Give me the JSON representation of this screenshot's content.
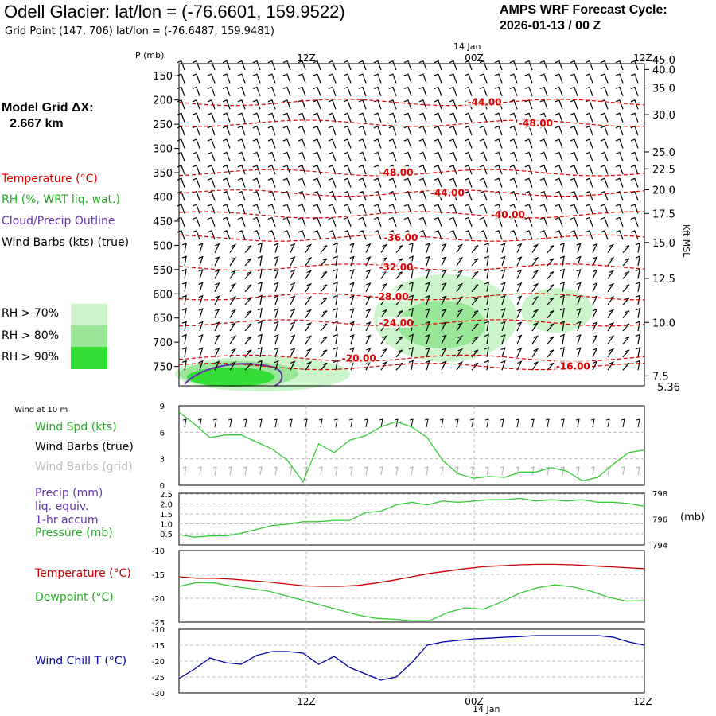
{
  "header": {
    "title": "Odell Glacier:  lat/lon = (-76.6601, 159.9522)",
    "subtitle": "Grid Point (147, 706) lat/lon = (-76.6487, 159.9481)",
    "cycle_line1": "AMPS WRF Forecast Cycle:",
    "cycle_line2": "2026-01-13 / 00  Z",
    "grid_label_line1": "Model Grid ΔX:",
    "grid_label_line2": "2.667 km"
  },
  "legend": {
    "temperature": "Temperature (°C)",
    "rh": "RH (%, WRT liq. wat.)",
    "cloud": "Cloud/Precip Outline",
    "wind": "Wind Barbs (kts) (true)",
    "rh70": "RH > 70%",
    "rh80": "RH > 80%",
    "rh90": "RH > 90%",
    "colors": {
      "rh70": "#ccf5cc",
      "rh80": "#99e699",
      "rh90": "#33dd33",
      "temp": "#dd0000",
      "cloud": "#6633aa"
    }
  },
  "time_axis": {
    "top_date": "14 Jan",
    "bottom_date": "14 Jan",
    "ticks": [
      "12Z",
      "00Z",
      "12Z"
    ]
  },
  "chart_data": [
    {
      "type": "contour",
      "id": "upper-air",
      "ylabel": "P (mb)",
      "y2label": "Kft MSL",
      "pressure_ticks": [
        "150",
        "200",
        "250",
        "300",
        "350",
        "400",
        "450",
        "500",
        "550",
        "600",
        "650",
        "700",
        "750"
      ],
      "pressure_range": [
        125,
        790
      ],
      "height_ticks": [
        "45.0",
        "40.0",
        "35.0",
        "30.0",
        "25.0",
        "22.5",
        "20.0",
        "17.5",
        "15.0",
        "12.5",
        "10.0",
        "7.5"
      ],
      "height_bottom": "5.36",
      "height_positions_mb": [
        150,
        170,
        208,
        263,
        340,
        375,
        418,
        467,
        527,
        601,
        692,
        802
      ],
      "temperature_contours": [
        {
          "label": "-44.00",
          "level": 205,
          "lt": 0.62
        },
        {
          "label": "-48.00",
          "level": 248,
          "lt": 0.73
        },
        {
          "label": "-48.00",
          "level": 350,
          "lt": 0.43
        },
        {
          "label": "-44.00",
          "level": 392,
          "lt": 0.54
        },
        {
          "label": "-40.00",
          "level": 437,
          "lt": 0.67
        },
        {
          "label": "-36.00",
          "level": 485,
          "lt": 0.44
        },
        {
          "label": "-32.00",
          "level": 545,
          "lt": 0.43
        },
        {
          "label": "-28.00",
          "level": 606,
          "lt": 0.42
        },
        {
          "label": "-24.00",
          "level": 660,
          "lt": 0.43
        },
        {
          "label": "-20.00",
          "level": 733,
          "lt": 0.35
        },
        {
          "label": "-16.00",
          "level": 750,
          "lt": 0.81
        }
      ]
    },
    {
      "type": "line",
      "id": "wind-10m",
      "title": "Wind at 10 m",
      "series_label": "Wind Spd (kts)",
      "barbs_true_label": "Wind Barbs (true)",
      "barbs_grid_label": "Wind Barbs (grid)",
      "yticks": [
        "9",
        "6",
        "3",
        "0"
      ],
      "ylim": [
        0,
        9
      ],
      "values": [
        8.3,
        6.9,
        5.4,
        5.7,
        5.7,
        4.9,
        4.1,
        2.8,
        0.4,
        4.7,
        3.7,
        5.1,
        5.6,
        6.6,
        7.2,
        6.6,
        5.4,
        2.8,
        1.3,
        0.8,
        1.0,
        0.9,
        1.5,
        1.5,
        2.0,
        1.6,
        0.5,
        0.9,
        2.4,
        3.7,
        4.0
      ],
      "color": "#33cc33"
    },
    {
      "type": "line",
      "id": "precip-pressure",
      "precip_label_line1": "Precip (mm)",
      "precip_label_line2": "liq. equiv.",
      "precip_label_line3": "1-hr accum",
      "pressure_label": "Pressure (mb)",
      "left_ticks": [
        "2.5",
        "2.0",
        "1.5",
        "1.0",
        "0.5"
      ],
      "right_ticks": [
        "798",
        "796",
        "794"
      ],
      "right_unit": "(mb)",
      "ylim": [
        794,
        798
      ],
      "values": [
        794.8,
        794.6,
        794.7,
        794.7,
        794.9,
        795.2,
        795.5,
        795.6,
        795.8,
        795.8,
        795.9,
        795.9,
        796.5,
        796.6,
        797.1,
        797.3,
        797.1,
        797.4,
        797.3,
        797.4,
        797.5,
        797.5,
        797.6,
        797.4,
        797.5,
        797.4,
        797.5,
        797.3,
        797.3,
        797.2,
        797.0
      ],
      "color": "#33cc33"
    },
    {
      "type": "line",
      "id": "temp-dewpoint",
      "temperature_label": "Temperature (°C)",
      "dewpoint_label": "Dewpoint (°C)",
      "yticks": [
        "-10",
        "-15",
        "-20",
        "-25"
      ],
      "ylim": [
        -25,
        -10
      ],
      "series": [
        {
          "name": "Temperature (°C)",
          "color": "#cc0000",
          "values": [
            -15.5,
            -15.8,
            -15.8,
            -16.0,
            -16.3,
            -16.6,
            -17.0,
            -17.4,
            -17.5,
            -17.5,
            -17.3,
            -16.8,
            -16.2,
            -15.5,
            -14.8,
            -14.3,
            -13.8,
            -13.4,
            -13.2,
            -13.0,
            -12.9,
            -12.9,
            -13.0,
            -13.2,
            -13.4,
            -13.6,
            -13.8
          ]
        },
        {
          "name": "Dewpoint (°C)",
          "color": "#33cc33",
          "values": [
            -17.5,
            -16.7,
            -16.8,
            -17.5,
            -18.0,
            -18.5,
            -19.5,
            -20.5,
            -21.5,
            -22.5,
            -23.5,
            -24.2,
            -24.4,
            -24.7,
            -24.7,
            -23.0,
            -22.0,
            -22.3,
            -20.8,
            -19.0,
            -17.8,
            -17.2,
            -17.6,
            -18.5,
            -19.8,
            -20.6,
            -20.5
          ]
        }
      ]
    },
    {
      "type": "line",
      "id": "wind-chill",
      "label": "Wind Chill T (°C)",
      "yticks": [
        "-10",
        "-15",
        "-20",
        "-25",
        "-30"
      ],
      "ylim": [
        -30,
        -10
      ],
      "values": [
        -25.5,
        -22.5,
        -19.0,
        -20.5,
        -21.0,
        -18.2,
        -17.0,
        -17.0,
        -17.5,
        -21.0,
        -18.5,
        -22.0,
        -24.0,
        -26.0,
        -25.0,
        -20.5,
        -15.0,
        -14.0,
        -13.5,
        -13.0,
        -12.8,
        -12.5,
        -12.3,
        -12.0,
        -12.0,
        -12.0,
        -12.0,
        -12.0,
        -12.5,
        -14.0,
        -15.0
      ],
      "color": "#0000aa"
    }
  ]
}
